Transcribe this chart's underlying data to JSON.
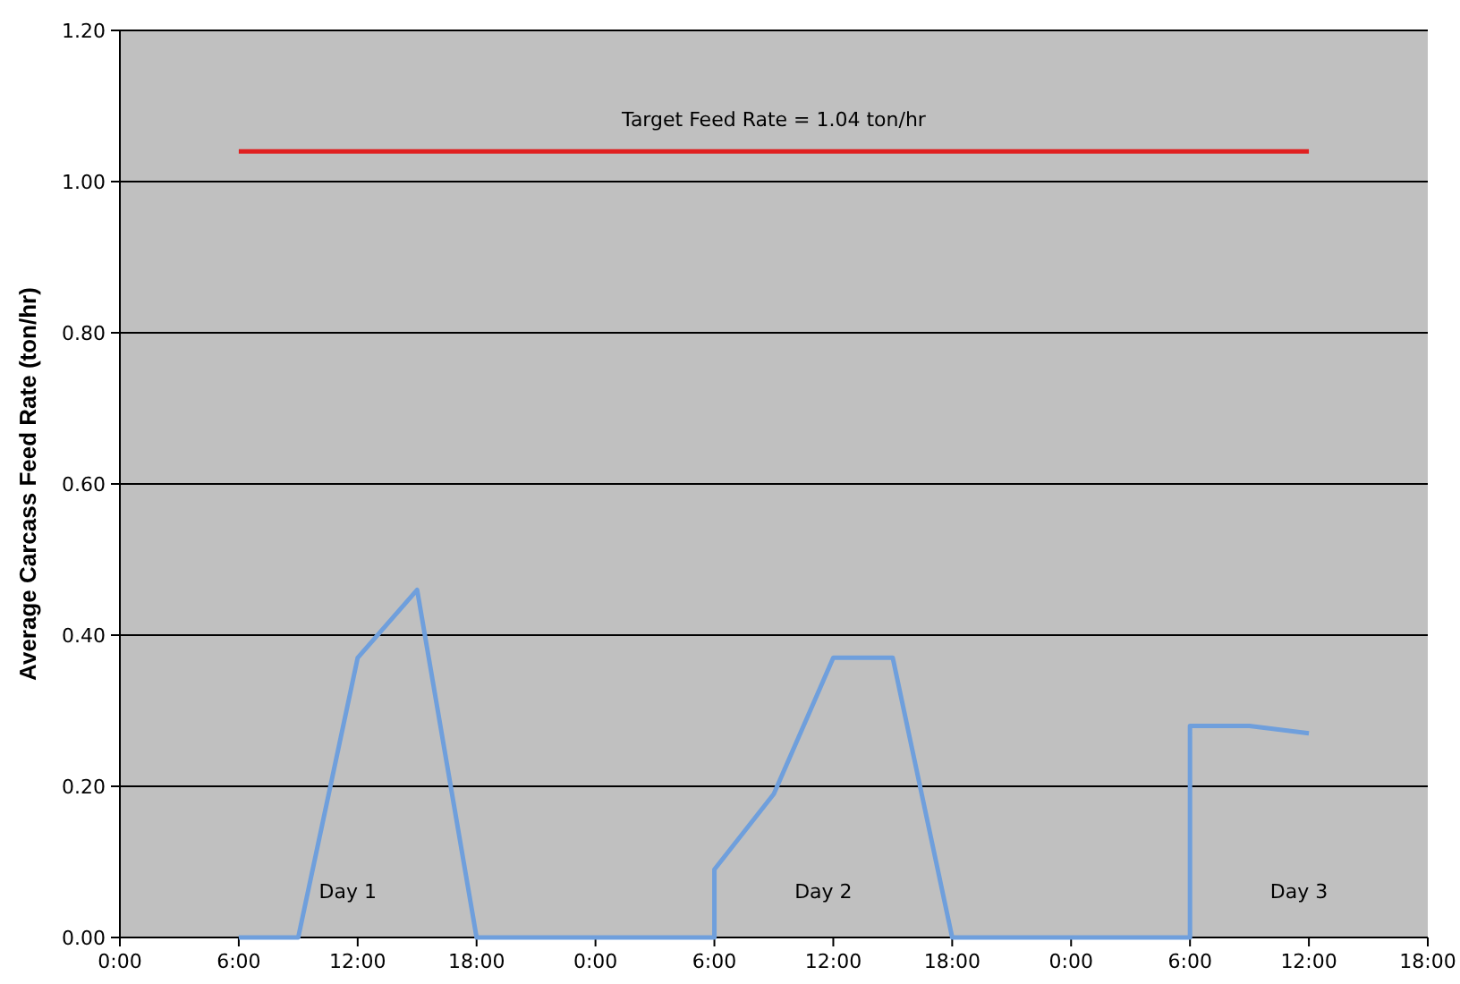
{
  "chart_data": {
    "type": "line",
    "ylabel": "Average Carcass Feed Rate (ton/hr)",
    "xlim": [
      "2000-01-01T00:00",
      "2000-01-03T18:00"
    ],
    "xticks": [
      {
        "value": "2000-01-01T00:00",
        "label": "0:00"
      },
      {
        "value": "2000-01-01T06:00",
        "label": "6:00"
      },
      {
        "value": "2000-01-01T12:00",
        "label": "12:00"
      },
      {
        "value": "2000-01-01T18:00",
        "label": "18:00"
      },
      {
        "value": "2000-01-02T00:00",
        "label": "0:00"
      },
      {
        "value": "2000-01-02T06:00",
        "label": "6:00"
      },
      {
        "value": "2000-01-02T12:00",
        "label": "12:00"
      },
      {
        "value": "2000-01-02T18:00",
        "label": "18:00"
      },
      {
        "value": "2000-01-03T00:00",
        "label": "0:00"
      },
      {
        "value": "2000-01-03T06:00",
        "label": "6:00"
      },
      {
        "value": "2000-01-03T12:00",
        "label": "12:00"
      },
      {
        "value": "2000-01-03T18:00",
        "label": "18:00"
      }
    ],
    "ylim": [
      0,
      1.2
    ],
    "yticks": [
      {
        "value": 0,
        "label": "0.00"
      },
      {
        "value": 0.2,
        "label": "0.20"
      },
      {
        "value": 0.4,
        "label": "0.40"
      },
      {
        "value": 0.6,
        "label": "0.60"
      },
      {
        "value": 0.8,
        "label": "0.80"
      },
      {
        "value": 1,
        "label": "1.00"
      },
      {
        "value": 1.2,
        "label": "1.20"
      }
    ],
    "grid": "y",
    "legend": false,
    "marker": "none",
    "line_style": "solid",
    "series": [
      {
        "color": "#6f9fdc",
        "x": [
          "2000-01-01T06:00",
          "2000-01-01T09:00",
          "2000-01-01T12:00",
          "2000-01-01T15:00",
          "2000-01-01T18:00",
          "2000-01-02T00:00",
          "2000-01-02T06:00",
          "2000-01-02T06:00",
          "2000-01-02T09:00",
          "2000-01-02T12:00",
          "2000-01-02T15:00",
          "2000-01-02T18:00",
          "2000-01-03T00:00",
          "2000-01-03T06:00",
          "2000-01-03T06:00",
          "2000-01-03T09:00",
          "2000-01-03T12:00"
        ],
        "values": [
          0,
          0,
          0.37,
          0.46,
          0,
          0,
          0,
          0.09,
          0.19,
          0.37,
          0.37,
          0,
          0,
          0,
          0.28,
          0.28,
          0.27
        ]
      },
      {
        "name": "Target Feed Rate = 1.04 ton/hr",
        "color": "#e02020",
        "x": [
          "2000-01-01T06:00",
          "2000-01-03T12:00"
        ],
        "values": [
          1.04,
          1.04
        ]
      }
    ],
    "annotations": [
      "Day 1",
      "Day 2",
      "Day 3"
    ]
  }
}
